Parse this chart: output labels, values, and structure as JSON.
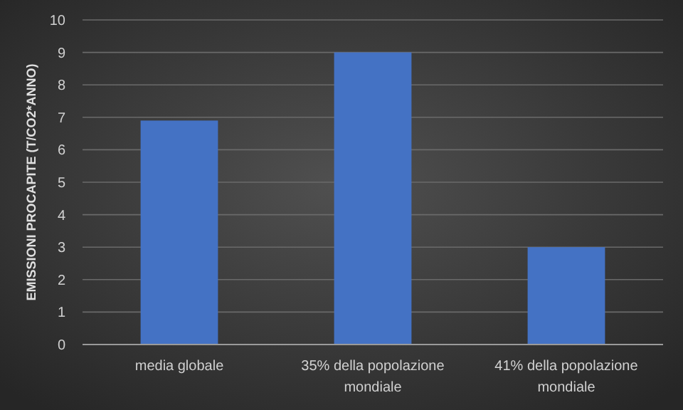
{
  "chart_data": {
    "type": "bar",
    "ylabel": "EMISSIONI PROCAPITE (T/CO2*ANNO)",
    "categories": [
      "media globale",
      "35% della popolazione mondiale",
      "41% della popolazione mondiale"
    ],
    "values": [
      6.9,
      9,
      3
    ],
    "color": "#4472c4",
    "ylim": [
      0,
      10
    ],
    "yticks": [
      0,
      1,
      2,
      3,
      4,
      5,
      6,
      7,
      8,
      9,
      10
    ],
    "grid": "y"
  }
}
